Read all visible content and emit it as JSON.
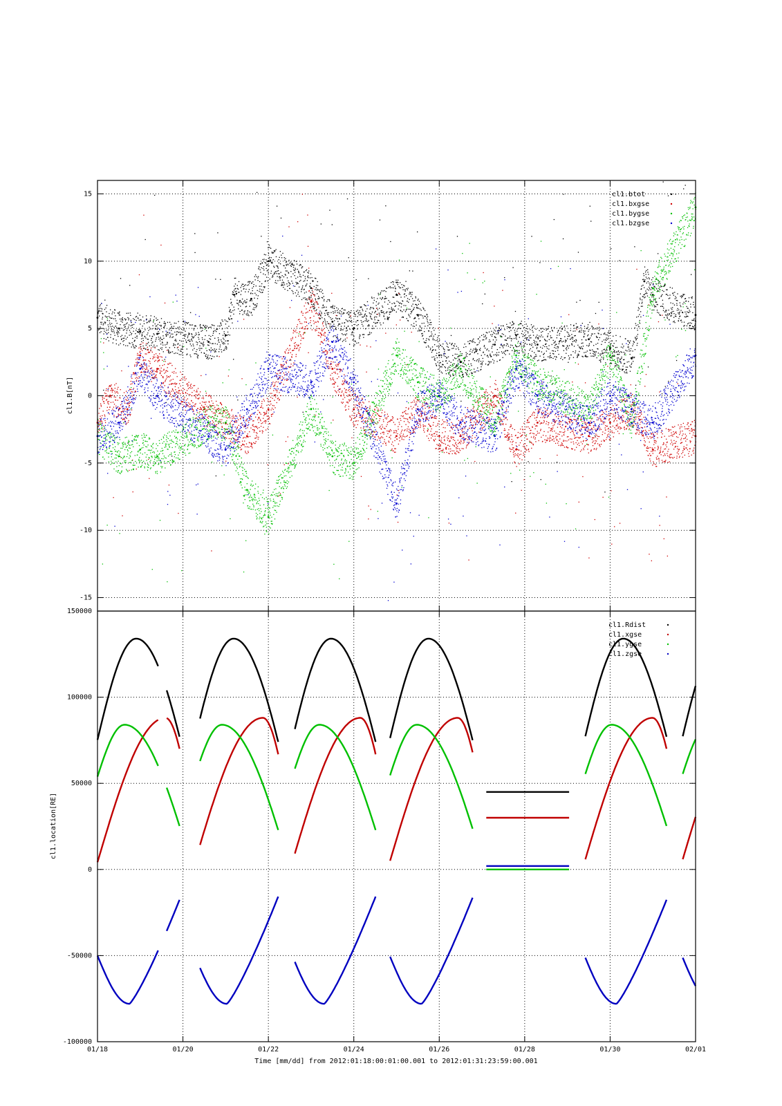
{
  "chart_data": [
    {
      "type": "scatter",
      "title": "",
      "xlabel": "",
      "ylabel": "cl1.B[nT]",
      "x_range": [
        "2012-01-18",
        "2012-02-01"
      ],
      "ylim": [
        -16,
        16
      ],
      "yticks": [
        -15,
        -10,
        -5,
        0,
        5,
        10,
        15
      ],
      "grid": true,
      "legend_position": "top-right",
      "series": [
        {
          "name": "cl1.btot",
          "color": "#000000",
          "points": [
            [
              "01/18",
              5.8
            ],
            [
              "01/18.5",
              5.0
            ],
            [
              "01/19",
              4.8
            ],
            [
              "01/19.4",
              4.6
            ],
            [
              "01/20.6",
              4.0
            ],
            [
              "01/21",
              4.5
            ],
            [
              "01/21.2",
              7.5
            ],
            [
              "01/21.6",
              7.2
            ],
            [
              "01/22",
              10.0
            ],
            [
              "01/23",
              8.0
            ],
            [
              "01/23.5",
              5.5
            ],
            [
              "01/24",
              5.0
            ],
            [
              "01/25",
              7.5
            ],
            [
              "01/25.5",
              6.0
            ],
            [
              "01/26",
              3.0
            ],
            [
              "01/26.5",
              2.5
            ],
            [
              "01/27.3",
              3.8
            ],
            [
              "01/27.8",
              4.5
            ],
            [
              "01/28.3",
              3.8
            ],
            [
              "01/29.5",
              4.2
            ],
            [
              "01/30",
              3.5
            ],
            [
              "01/30.5",
              2.8
            ],
            [
              "01/30.8",
              8.5
            ],
            [
              "01/31",
              7.5
            ],
            [
              "02/01",
              6.0
            ]
          ]
        },
        {
          "name": "cl1.bxgse",
          "color": "#d00000",
          "points": [
            [
              "01/18",
              -2
            ],
            [
              "01/18.3",
              0
            ],
            [
              "01/18.7",
              -1
            ],
            [
              "01/19",
              3
            ],
            [
              "01/19.4",
              2
            ],
            [
              "01/20.5",
              -1
            ],
            [
              "01/21",
              -2
            ],
            [
              "01/21.5",
              -3
            ],
            [
              "01/22",
              -1
            ],
            [
              "01/23",
              7
            ],
            [
              "01/23.5",
              2
            ],
            [
              "01/24",
              -1
            ],
            [
              "01/25",
              -3
            ],
            [
              "01/25.5",
              -1
            ],
            [
              "01/26",
              -3
            ],
            [
              "01/26.5",
              -3
            ],
            [
              "01/27.3",
              0
            ],
            [
              "01/27.8",
              -4
            ],
            [
              "01/28.3",
              -2
            ],
            [
              "01/29.5",
              -3
            ],
            [
              "01/30",
              -2
            ],
            [
              "01/30.5",
              -1
            ],
            [
              "01/31",
              -4
            ],
            [
              "02/01",
              -3
            ]
          ]
        },
        {
          "name": "cl1.bygse",
          "color": "#00c000",
          "points": [
            [
              "01/18",
              -3
            ],
            [
              "01/18.5",
              -4.5
            ],
            [
              "01/19",
              -4
            ],
            [
              "01/19.4",
              -4.5
            ],
            [
              "01/20.6",
              -2
            ],
            [
              "01/21",
              -2
            ],
            [
              "01/21.5",
              -7
            ],
            [
              "01/22",
              -9
            ],
            [
              "01/23",
              -1
            ],
            [
              "01/23.5",
              -4.5
            ],
            [
              "01/24",
              -5
            ],
            [
              "01/25",
              3
            ],
            [
              "01/25.5",
              1
            ],
            [
              "01/26",
              0
            ],
            [
              "01/26.5",
              2
            ],
            [
              "01/27.3",
              -2
            ],
            [
              "01/27.8",
              3
            ],
            [
              "01/28.3",
              1
            ],
            [
              "01/29.5",
              -1
            ],
            [
              "01/30",
              3
            ],
            [
              "01/30.5",
              -2
            ],
            [
              "01/31",
              8
            ],
            [
              "02/01",
              14
            ]
          ]
        },
        {
          "name": "cl1.bzgse",
          "color": "#0000d0",
          "points": [
            [
              "01/18",
              -3
            ],
            [
              "01/18.5",
              -2
            ],
            [
              "01/19",
              2
            ],
            [
              "01/19.4",
              0
            ],
            [
              "01/20.6",
              -3
            ],
            [
              "01/21",
              -4
            ],
            [
              "01/21.5",
              -1
            ],
            [
              "01/22",
              2
            ],
            [
              "01/23",
              1
            ],
            [
              "01/23.5",
              4
            ],
            [
              "01/24",
              1
            ],
            [
              "01/25",
              -8
            ],
            [
              "01/25.5",
              -1
            ],
            [
              "01/26",
              0
            ],
            [
              "01/26.5",
              -2
            ],
            [
              "01/27.3",
              -3
            ],
            [
              "01/27.8",
              2
            ],
            [
              "01/28.3",
              0
            ],
            [
              "01/29.5",
              -2
            ],
            [
              "01/30",
              0
            ],
            [
              "01/30.5",
              -1
            ],
            [
              "01/31",
              -2
            ],
            [
              "02/01",
              3
            ]
          ]
        }
      ]
    },
    {
      "type": "line",
      "title": "",
      "xlabel": "Time [mm/dd]  from 2012:01:18:00:01:00.001  to  2012:01:31:23:59:00.001",
      "ylabel": "cl1.location[RE]",
      "x_range": [
        "2012-01-18",
        "2012-02-01"
      ],
      "ylim": [
        -100000,
        150000
      ],
      "yticks": [
        -100000,
        -50000,
        0,
        50000,
        100000,
        150000
      ],
      "xticks": [
        "01/18",
        "01/20",
        "01/22",
        "01/24",
        "01/26",
        "01/28",
        "01/30",
        "02/01"
      ],
      "grid": true,
      "legend_position": "top-right",
      "series": [
        {
          "name": "cl1.Rdist",
          "color": "#000000"
        },
        {
          "name": "cl1.xgse",
          "color": "#c00000"
        },
        {
          "name": "cl1.ygse",
          "color": "#00c000"
        },
        {
          "name": "cl1.zgse",
          "color": "#0000c0"
        }
      ],
      "orbit_period_days": 2.28,
      "orbit_segments": [
        {
          "start": "01/18.00",
          "end": "01/19.42"
        },
        {
          "start": "01/19.62",
          "end": "01/19.92"
        },
        {
          "start": "01/20.40",
          "end": "01/22.23"
        },
        {
          "start": "01/22.62",
          "end": "01/24.51"
        },
        {
          "start": "01/24.85",
          "end": "01/26.78"
        },
        {
          "start": "01/27.10",
          "end": "01/29.04"
        },
        {
          "start": "01/29.42",
          "end": "01/31.32"
        },
        {
          "start": "01/31.70",
          "end": "02/01.00"
        }
      ],
      "orbit_shapes": {
        "Rdist": {
          "start": 70000,
          "peak": 134000,
          "end": 45000
        },
        "xgse": {
          "start": 0,
          "peak": 88000,
          "end": 30000
        },
        "ygse": {
          "start": 50000,
          "peak": 84000,
          "end": 0
        },
        "zgse": {
          "start": -47000,
          "trough": -78000,
          "end": 2000
        }
      }
    }
  ]
}
